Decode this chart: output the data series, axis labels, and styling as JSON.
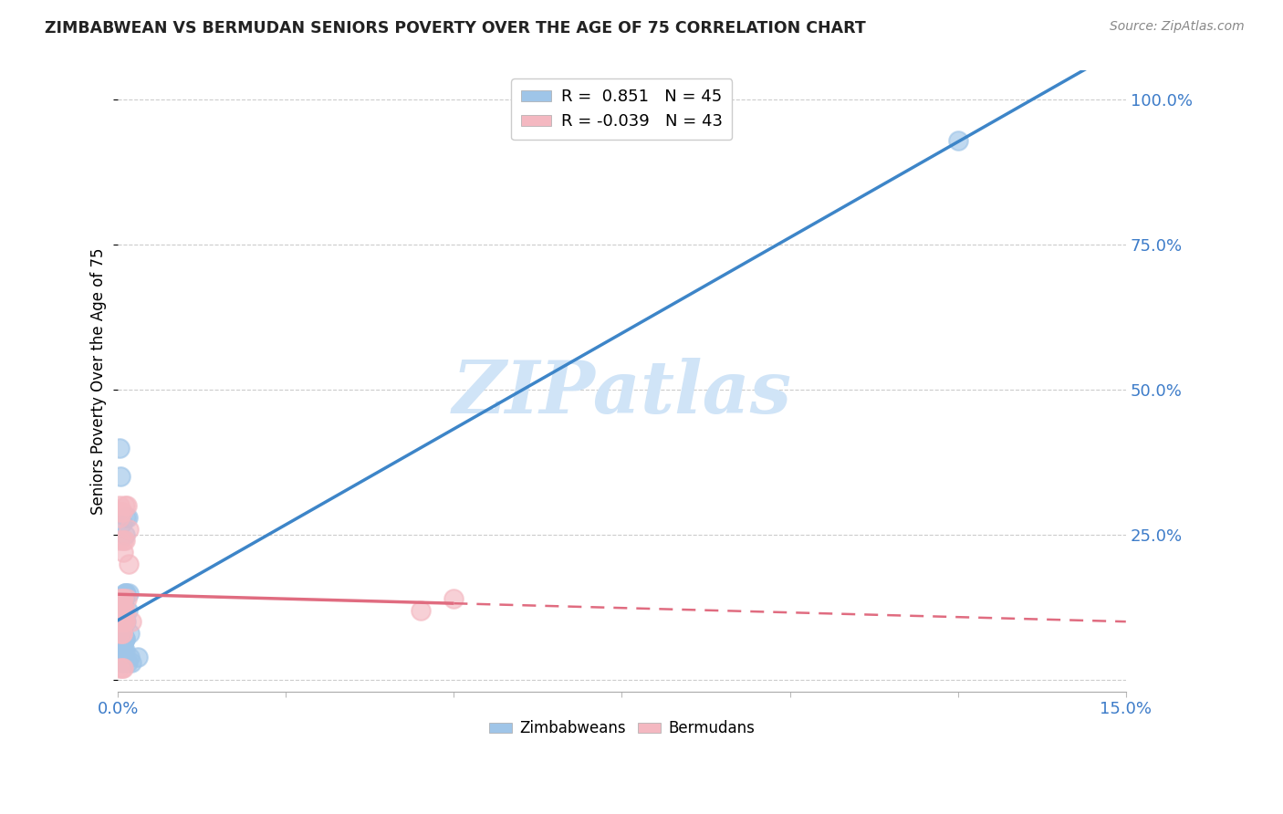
{
  "title": "ZIMBABWEAN VS BERMUDAN SENIORS POVERTY OVER THE AGE OF 75 CORRELATION CHART",
  "source": "Source: ZipAtlas.com",
  "ylabel": "Seniors Poverty Over the Age of 75",
  "xlim": [
    0.0,
    0.15
  ],
  "ylim": [
    -0.02,
    1.05
  ],
  "yticks": [
    0.0,
    0.25,
    0.5,
    0.75,
    1.0
  ],
  "yticklabels": [
    "",
    "25.0%",
    "50.0%",
    "75.0%",
    "100.0%"
  ],
  "zimb_R": 0.851,
  "zimb_N": 45,
  "berm_R": -0.039,
  "berm_N": 43,
  "zimb_color": "#9fc5e8",
  "berm_color": "#f4b8c1",
  "zimb_line_color": "#3d85c8",
  "berm_line_color": "#e06c80",
  "watermark": "ZIPatlas",
  "watermark_color": "#d0e4f7",
  "zimb_x": [
    0.0008,
    0.0005,
    0.001,
    0.001,
    0.0015,
    0.0006,
    0.0012,
    0.0008,
    0.0018,
    0.0004,
    0.0006,
    0.0008,
    0.0004,
    0.001,
    0.0012,
    0.0005,
    0.0009,
    0.0015,
    0.0006,
    0.0004,
    0.001,
    0.0008,
    0.0006,
    0.0012,
    0.0004,
    0.0009,
    0.0006,
    0.001,
    0.0016,
    0.0003,
    0.0008,
    0.0005,
    0.0018,
    0.001,
    0.0003,
    0.002,
    0.0008,
    0.0014,
    0.0006,
    0.001,
    0.003,
    0.0006,
    0.0008,
    0.125,
    0.0003
  ],
  "zimb_y": [
    0.12,
    0.07,
    0.07,
    0.07,
    0.12,
    0.1,
    0.1,
    0.08,
    0.08,
    0.07,
    0.05,
    0.05,
    0.05,
    0.05,
    0.15,
    0.14,
    0.14,
    0.28,
    0.27,
    0.35,
    0.25,
    0.06,
    0.06,
    0.28,
    0.06,
    0.07,
    0.09,
    0.15,
    0.15,
    0.08,
    0.04,
    0.04,
    0.04,
    0.1,
    0.1,
    0.03,
    0.03,
    0.03,
    0.03,
    0.15,
    0.04,
    0.05,
    0.04,
    0.93,
    0.4
  ],
  "berm_x": [
    0.0003,
    0.0003,
    0.0006,
    0.0003,
    0.0008,
    0.0006,
    0.0003,
    0.0008,
    0.0006,
    0.001,
    0.0008,
    0.0006,
    0.001,
    0.0003,
    0.0006,
    0.0008,
    0.0008,
    0.0003,
    0.001,
    0.0006,
    0.0016,
    0.0013,
    0.0003,
    0.0006,
    0.0006,
    0.0003,
    0.0008,
    0.0016,
    0.0013,
    0.0006,
    0.0003,
    0.0008,
    0.001,
    0.05,
    0.045,
    0.002,
    0.001,
    0.0008,
    0.0003,
    0.0006,
    0.0006,
    0.0008,
    0.0003
  ],
  "berm_y": [
    0.1,
    0.1,
    0.1,
    0.1,
    0.1,
    0.1,
    0.1,
    0.1,
    0.1,
    0.1,
    0.12,
    0.12,
    0.12,
    0.08,
    0.08,
    0.22,
    0.24,
    0.24,
    0.24,
    0.14,
    0.26,
    0.3,
    0.3,
    0.08,
    0.14,
    0.14,
    0.14,
    0.2,
    0.14,
    0.29,
    0.29,
    0.12,
    0.3,
    0.14,
    0.12,
    0.1,
    0.1,
    0.1,
    0.28,
    0.1,
    0.02,
    0.02,
    0.02
  ]
}
